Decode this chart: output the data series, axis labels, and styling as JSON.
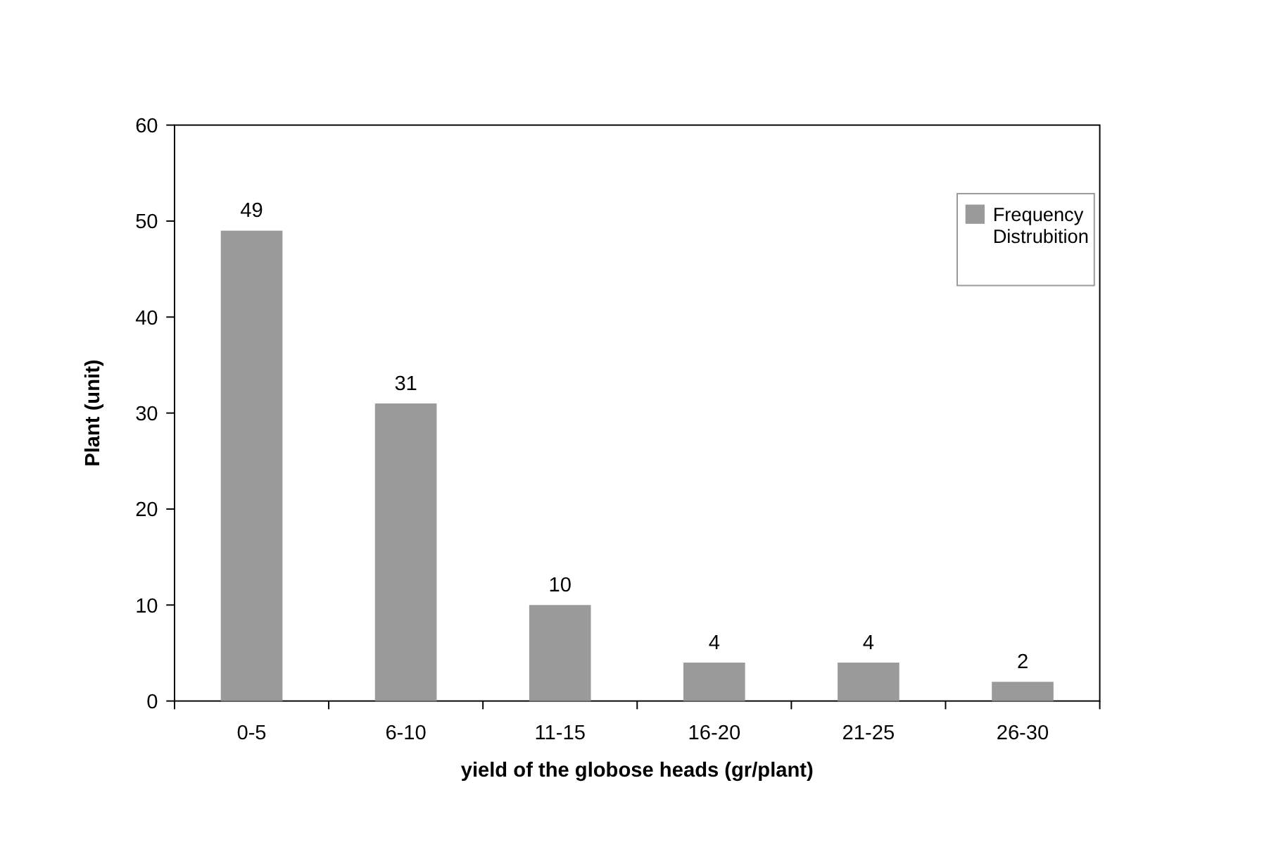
{
  "chart_data": {
    "type": "bar",
    "xlabel": "yield of the globose heads (gr/plant)",
    "ylabel": "Plant (unit)",
    "categories": [
      "0-5",
      "6-10",
      "11-15",
      "16-20",
      "21-25",
      "26-30"
    ],
    "series": [
      {
        "name": "Frequency Distrubition",
        "color": "#9a9a9a",
        "values": [
          49,
          31,
          10,
          4,
          4,
          2
        ]
      }
    ],
    "ylim": [
      0,
      60
    ],
    "yticks": [
      0,
      10,
      20,
      30,
      40,
      50,
      60
    ],
    "data_labels": true,
    "legend": "top right",
    "grid": false
  }
}
